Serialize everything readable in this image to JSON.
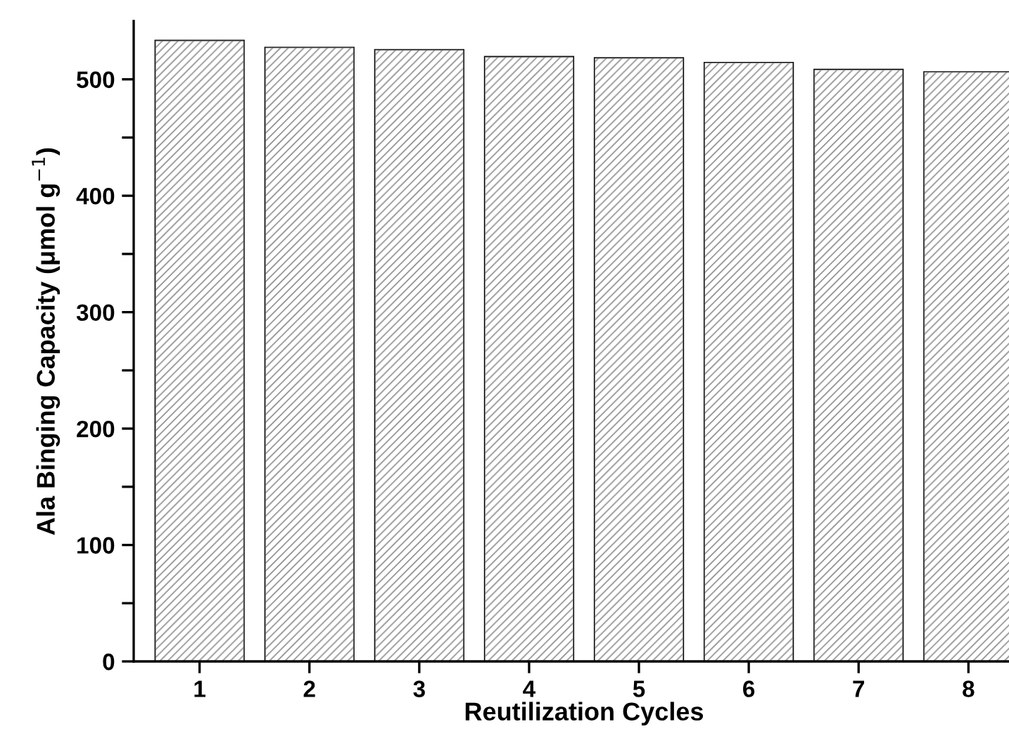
{
  "chart_data": {
    "type": "bar",
    "xlabel": "Reutilization Cycles",
    "ylabel": "Ala Binging Capacity (μmol g$^{−1}$)",
    "categories": [
      "1",
      "2",
      "3",
      "4",
      "5",
      "6",
      "7",
      "8"
    ],
    "values": [
      533,
      527,
      525,
      519,
      518,
      514,
      508,
      506
    ],
    "color": "#8c8c8c",
    "ylim": [
      0,
      550
    ],
    "yticks": [
      0,
      {
        "value": 50,
        "label": null
      },
      100,
      {
        "value": 150,
        "label": null
      },
      200,
      {
        "value": 250,
        "label": null
      },
      300,
      {
        "value": 350,
        "label": null
      },
      400,
      {
        "value": 450,
        "label": null
      },
      500
    ],
    "grid": false
  }
}
